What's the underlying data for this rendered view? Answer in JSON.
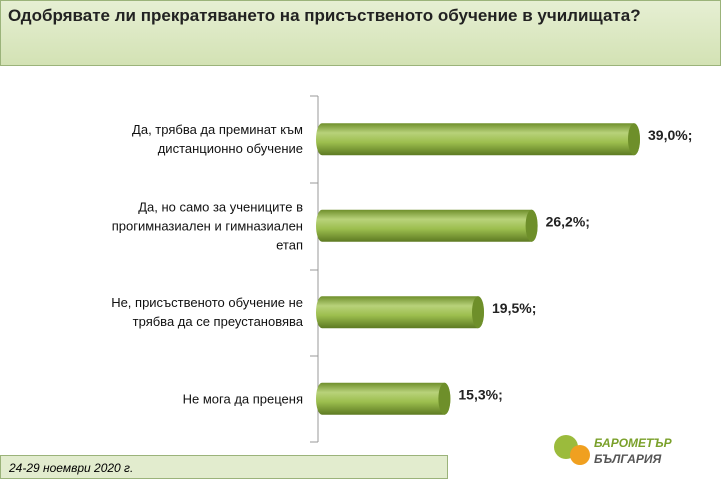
{
  "chart_data": {
    "type": "bar",
    "orientation": "horizontal",
    "title": "Одобрявате ли прекратяването на присъственото обучение в училищата?",
    "categories": [
      "Да, трябва да преминат към дистанционно обучение",
      "Да, но само за учениците в прогимназиален и гимназиален етап",
      "Не, присъственото обучение не трябва да се преустановява",
      "Не мога да преценя"
    ],
    "values": [
      39.0,
      26.2,
      19.5,
      15.3
    ],
    "value_labels": [
      "39,0%;",
      "26,2%;",
      "19,5%;",
      "15,3%;"
    ],
    "color": "#8cb43c"
  },
  "footer": {
    "date": "24-29 ноември 2020 г.",
    "logo_top": "БАРОМЕТЪР",
    "logo_bottom": "БЪЛГАРИЯ"
  }
}
